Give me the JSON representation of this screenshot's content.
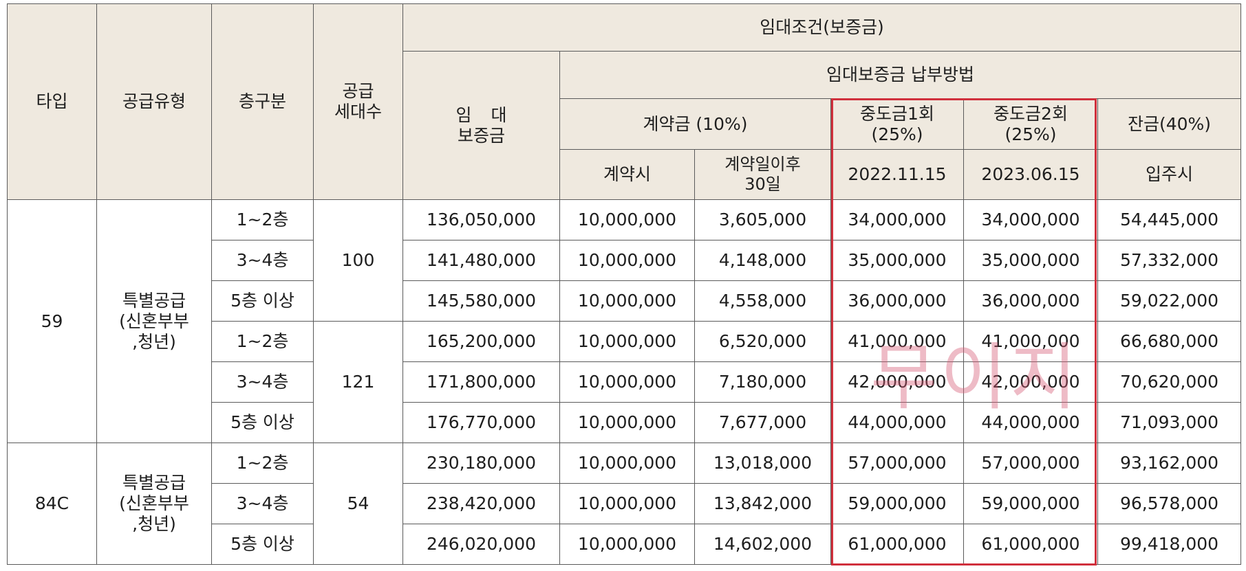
{
  "header": {
    "type": "타입",
    "supply_type": "공급유형",
    "floor": "층구분",
    "units_1": "공급",
    "units_2": "세대수",
    "deposit_1": "임  대",
    "deposit_2": "보증금",
    "rent_conditions": "임대조건(보증금)",
    "payment_method": "임대보증금 납부방법",
    "down_payment": "계약금 (10%)",
    "interim1_1": "중도금1회",
    "interim1_2": "(25%)",
    "interim2_1": "중도금2회",
    "interim2_2": "(25%)",
    "balance": "잔금(40%)",
    "at_contract": "계약시",
    "after30_1": "계약일이후",
    "after30_2": "30일",
    "date1": "2022.11.15",
    "date2": "2023.06.15",
    "move_in": "입주시"
  },
  "groups": [
    {
      "type": "59",
      "supply_1": "특별공급",
      "supply_2": "(신혼부부",
      "supply_3": ",청년)",
      "unit_groups": [
        {
          "units": "100",
          "rows": [
            {
              "floor": "1~2층",
              "deposit": "136,050,000",
              "contract": "10,000,000",
              "after30": "3,605,000",
              "interim1": "34,000,000",
              "interim2": "34,000,000",
              "balance": "54,445,000"
            },
            {
              "floor": "3~4층",
              "deposit": "141,480,000",
              "contract": "10,000,000",
              "after30": "4,148,000",
              "interim1": "35,000,000",
              "interim2": "35,000,000",
              "balance": "57,332,000"
            },
            {
              "floor": "5층 이상",
              "deposit": "145,580,000",
              "contract": "10,000,000",
              "after30": "4,558,000",
              "interim1": "36,000,000",
              "interim2": "36,000,000",
              "balance": "59,022,000"
            }
          ]
        },
        {
          "units": "121",
          "rows": [
            {
              "floor": "1~2층",
              "deposit": "165,200,000",
              "contract": "10,000,000",
              "after30": "6,520,000",
              "interim1": "41,000,000",
              "interim2": "41,000,000",
              "balance": "66,680,000"
            },
            {
              "floor": "3~4층",
              "deposit": "171,800,000",
              "contract": "10,000,000",
              "after30": "7,180,000",
              "interim1": "42,000,000",
              "interim2": "42,000,000",
              "balance": "70,620,000"
            },
            {
              "floor": "5층 이상",
              "deposit": "176,770,000",
              "contract": "10,000,000",
              "after30": "7,677,000",
              "interim1": "44,000,000",
              "interim2": "44,000,000",
              "balance": "71,093,000"
            }
          ]
        }
      ]
    },
    {
      "type": "84C",
      "supply_1": "특별공급",
      "supply_2": "(신혼부부",
      "supply_3": ",청년)",
      "unit_groups": [
        {
          "units": "54",
          "rows": [
            {
              "floor": "1~2층",
              "deposit": "230,180,000",
              "contract": "10,000,000",
              "after30": "13,018,000",
              "interim1": "57,000,000",
              "interim2": "57,000,000",
              "balance": "93,162,000"
            },
            {
              "floor": "3~4층",
              "deposit": "238,420,000",
              "contract": "10,000,000",
              "after30": "13,842,000",
              "interim1": "59,000,000",
              "interim2": "59,000,000",
              "balance": "96,578,000"
            },
            {
              "floor": "5층 이상",
              "deposit": "246,020,000",
              "contract": "10,000,000",
              "after30": "14,602,000",
              "interim1": "61,000,000",
              "interim2": "61,000,000",
              "balance": "99,418,000"
            }
          ]
        }
      ]
    }
  ],
  "highlight": {
    "color": "#d0303c"
  },
  "watermark": {
    "text": "무이지",
    "color": "#d65c78"
  }
}
